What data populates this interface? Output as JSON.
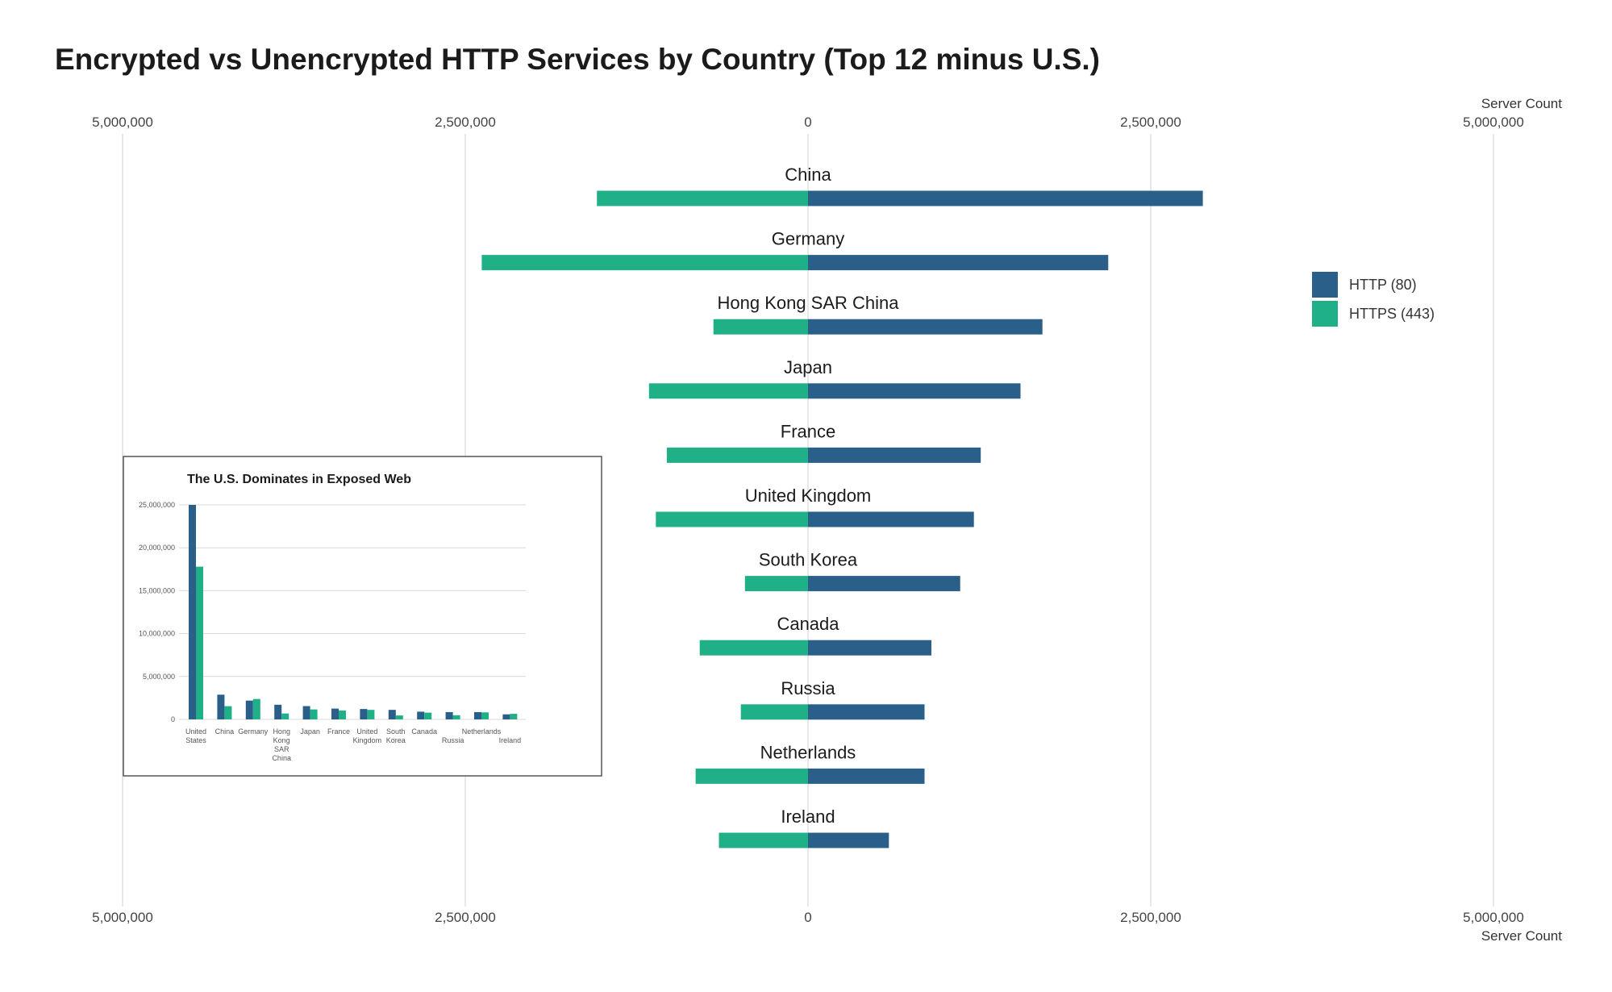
{
  "chart_data": [
    {
      "type": "bar",
      "orientation": "horizontal-diverging",
      "title": "Encrypted vs Unencrypted HTTP Services by Country (Top 12 minus U.S.)",
      "xlabel": "Server Count",
      "xlim": [
        -5000000,
        5000000
      ],
      "x_ticks": [
        "5,000,000",
        "2,500,000",
        "0",
        "2,500,000",
        "5,000,000"
      ],
      "grid": true,
      "legend_position": "right",
      "categories": [
        "China",
        "Germany",
        "Hong Kong SAR China",
        "Japan",
        "France",
        "United Kingdom",
        "South Korea",
        "Canada",
        "Russia",
        "Netherlands",
        "Ireland"
      ],
      "series": [
        {
          "name": "HTTP (80)",
          "color": "#2a5f8a",
          "side": "right",
          "values": [
            2880000,
            2190000,
            1710000,
            1550000,
            1260000,
            1210000,
            1110000,
            900000,
            850000,
            850000,
            590000
          ]
        },
        {
          "name": "HTTPS (443)",
          "color": "#20b087",
          "side": "left",
          "values": [
            1540000,
            2380000,
            690000,
            1160000,
            1030000,
            1110000,
            460000,
            790000,
            490000,
            820000,
            650000
          ]
        }
      ]
    },
    {
      "type": "bar",
      "title": "The U.S. Dominates in Exposed Web",
      "ylim": [
        0,
        25000000
      ],
      "y_ticks": [
        "0",
        "5,000,000",
        "10,000,000",
        "15,000,000",
        "20,000,000",
        "25,000,000"
      ],
      "grid": true,
      "categories": [
        [
          "United",
          "States"
        ],
        [
          "China"
        ],
        [
          "Germany"
        ],
        [
          "Hong",
          "Kong",
          "SAR",
          "China"
        ],
        [
          "Japan"
        ],
        [
          "France"
        ],
        [
          "United",
          "Kingdom"
        ],
        [
          "South",
          "Korea"
        ],
        [
          "Canada"
        ],
        [
          "",
          "Russia"
        ],
        [
          "Netherlands"
        ],
        [
          "",
          "Ireland"
        ]
      ],
      "series": [
        {
          "color": "#2a5f8a",
          "values": [
            25000000,
            2880000,
            2190000,
            1710000,
            1550000,
            1260000,
            1210000,
            1110000,
            900000,
            850000,
            850000,
            590000
          ]
        },
        {
          "color": "#20b087",
          "values": [
            17800000,
            1540000,
            2380000,
            690000,
            1160000,
            1030000,
            1110000,
            460000,
            790000,
            490000,
            820000,
            650000
          ]
        }
      ]
    }
  ]
}
